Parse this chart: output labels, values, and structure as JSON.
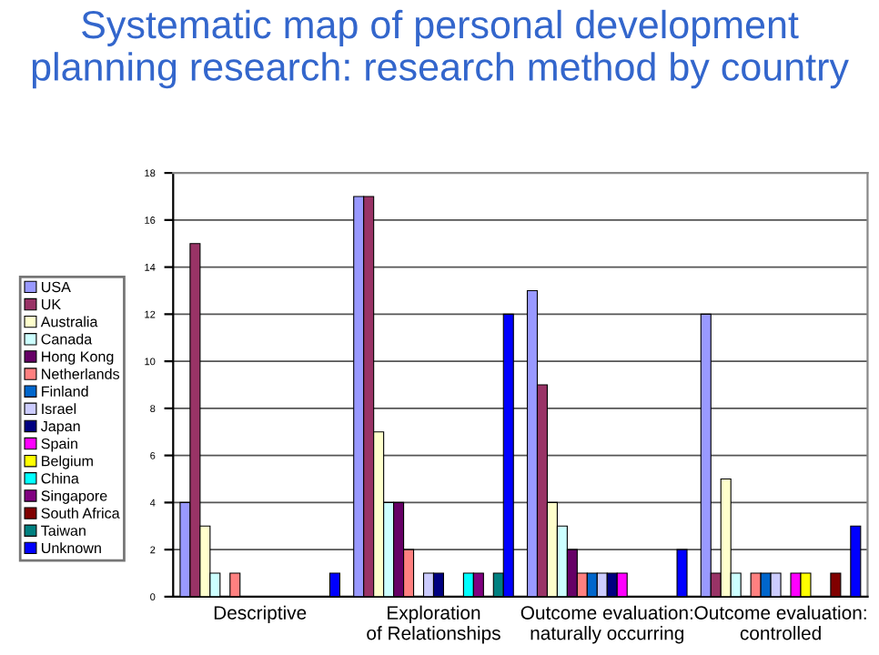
{
  "chart_data": {
    "type": "bar",
    "title": "Systematic map of personal development planning research: research method by country",
    "categories": [
      "Descriptive",
      "Exploration\nof Relationships",
      "Outcome evaluation:\nnaturally occurring",
      "Outcome evaluation:\ncontrolled"
    ],
    "series": [
      {
        "name": "USA",
        "color": "#9999ff",
        "values": [
          4,
          17,
          13,
          12
        ]
      },
      {
        "name": "UK",
        "color": "#993366",
        "values": [
          15,
          17,
          9,
          1
        ]
      },
      {
        "name": "Australia",
        "color": "#ffffcc",
        "values": [
          3,
          7,
          4,
          5
        ]
      },
      {
        "name": "Canada",
        "color": "#ccffff",
        "values": [
          1,
          4,
          3,
          1
        ]
      },
      {
        "name": "Hong Kong",
        "color": "#660066",
        "values": [
          null,
          4,
          2,
          null
        ]
      },
      {
        "name": "Netherlands",
        "color": "#ff8080",
        "values": [
          1,
          2,
          1,
          1
        ]
      },
      {
        "name": "Finland",
        "color": "#0066cc",
        "values": [
          null,
          null,
          1,
          1
        ]
      },
      {
        "name": "Israel",
        "color": "#ccccff",
        "values": [
          null,
          1,
          1,
          1
        ]
      },
      {
        "name": "Japan",
        "color": "#000080",
        "values": [
          null,
          1,
          1,
          null
        ]
      },
      {
        "name": "Spain",
        "color": "#ff00ff",
        "values": [
          null,
          null,
          1,
          1
        ]
      },
      {
        "name": "Belgium",
        "color": "#ffff00",
        "values": [
          null,
          null,
          null,
          1
        ]
      },
      {
        "name": "China",
        "color": "#00ffff",
        "values": [
          null,
          1,
          null,
          null
        ]
      },
      {
        "name": "Singapore",
        "color": "#800080",
        "values": [
          null,
          1,
          null,
          null
        ]
      },
      {
        "name": "South Africa",
        "color": "#800000",
        "values": [
          null,
          null,
          null,
          1
        ]
      },
      {
        "name": "Taiwan",
        "color": "#008080",
        "values": [
          null,
          1,
          null,
          null
        ]
      },
      {
        "name": "Unknown",
        "color": "#0000ff",
        "values": [
          1,
          12,
          2,
          3
        ]
      }
    ],
    "ylim": [
      0,
      18
    ],
    "yticks": [
      0,
      2,
      4,
      6,
      8,
      10,
      12,
      14,
      16,
      18
    ],
    "grid": "y",
    "legend": "left"
  }
}
